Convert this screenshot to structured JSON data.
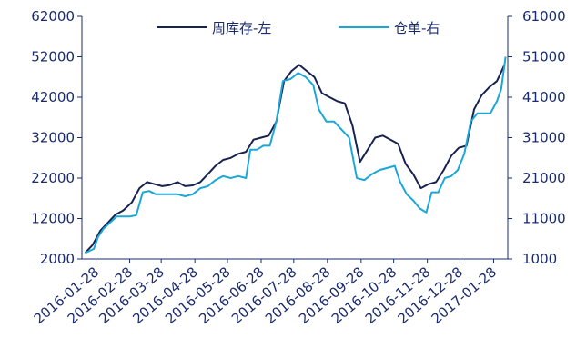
{
  "chart_data": {
    "type": "line",
    "title": "",
    "xlabel": "",
    "y_left": {
      "label": "",
      "ylim": [
        2000,
        62000
      ],
      "ticks": [
        2000,
        12000,
        22000,
        32000,
        42000,
        52000,
        62000
      ]
    },
    "y_right": {
      "label": "",
      "ylim": [
        1000,
        61000
      ],
      "ticks": [
        1000,
        11000,
        21000,
        31000,
        41000,
        51000,
        61000
      ]
    },
    "x_tick_labels": [
      "2016-01-28",
      "2016-02-28",
      "2016-03-28",
      "2016-04-28",
      "2016-05-28",
      "2016-06-28",
      "2016-07-28",
      "2016-08-28",
      "2016-09-28",
      "2016-10-28",
      "2016-11-28",
      "2016-12-28",
      "2017-01-28"
    ],
    "grid": false,
    "legend_position": "top",
    "series": [
      {
        "name": "周库存-左",
        "axis": "left",
        "color": "#17224f",
        "points": [
          [
            "2016-01-18",
            3500
          ],
          [
            "2016-01-25",
            5500
          ],
          [
            "2016-02-01",
            9000
          ],
          [
            "2016-02-08",
            11000
          ],
          [
            "2016-02-15",
            13000
          ],
          [
            "2016-02-22",
            14000
          ],
          [
            "2016-03-01",
            16000
          ],
          [
            "2016-03-08",
            19500
          ],
          [
            "2016-03-15",
            21000
          ],
          [
            "2016-03-22",
            20500
          ],
          [
            "2016-03-29",
            20000
          ],
          [
            "2016-04-05",
            20300
          ],
          [
            "2016-04-12",
            21000
          ],
          [
            "2016-04-19",
            20000
          ],
          [
            "2016-04-26",
            20200
          ],
          [
            "2016-05-03",
            21000
          ],
          [
            "2016-05-10",
            23000
          ],
          [
            "2016-05-17",
            25000
          ],
          [
            "2016-05-24",
            26500
          ],
          [
            "2016-05-31",
            27000
          ],
          [
            "2016-06-07",
            28000
          ],
          [
            "2016-06-14",
            28500
          ],
          [
            "2016-06-21",
            31500
          ],
          [
            "2016-06-28",
            32000
          ],
          [
            "2016-07-05",
            32500
          ],
          [
            "2016-07-12",
            36000
          ],
          [
            "2016-07-19",
            46000
          ],
          [
            "2016-07-26",
            48500
          ],
          [
            "2016-08-02",
            50000
          ],
          [
            "2016-08-09",
            48500
          ],
          [
            "2016-08-16",
            47000
          ],
          [
            "2016-08-23",
            43000
          ],
          [
            "2016-08-30",
            42000
          ],
          [
            "2016-09-06",
            41000
          ],
          [
            "2016-09-13",
            40500
          ],
          [
            "2016-09-20",
            35000
          ],
          [
            "2016-09-27",
            26000
          ],
          [
            "2016-10-04",
            29000
          ],
          [
            "2016-10-11",
            32000
          ],
          [
            "2016-10-18",
            32500
          ],
          [
            "2016-10-25",
            31500
          ],
          [
            "2016-11-01",
            30500
          ],
          [
            "2016-11-08",
            25500
          ],
          [
            "2016-11-15",
            23000
          ],
          [
            "2016-11-22",
            19500
          ],
          [
            "2016-11-29",
            20500
          ],
          [
            "2016-12-06",
            21000
          ],
          [
            "2016-12-13",
            24000
          ],
          [
            "2016-12-20",
            27500
          ],
          [
            "2016-12-27",
            29500
          ],
          [
            "2017-01-03",
            30000
          ],
          [
            "2017-01-10",
            39000
          ],
          [
            "2017-01-17",
            42500
          ],
          [
            "2017-01-24",
            44500
          ],
          [
            "2017-01-31",
            46000
          ],
          [
            "2017-02-07",
            50000
          ]
        ]
      },
      {
        "name": "仓单-右",
        "axis": "right",
        "color": "#1aa7d8",
        "points": [
          [
            "2016-01-18",
            2500
          ],
          [
            "2016-01-22",
            3000
          ],
          [
            "2016-01-26",
            3500
          ],
          [
            "2016-01-30",
            6500
          ],
          [
            "2016-02-04",
            8500
          ],
          [
            "2016-02-10",
            10000
          ],
          [
            "2016-02-16",
            11500
          ],
          [
            "2016-02-22",
            11500
          ],
          [
            "2016-02-28",
            11500
          ],
          [
            "2016-03-05",
            11800
          ],
          [
            "2016-03-11",
            17500
          ],
          [
            "2016-03-17",
            17800
          ],
          [
            "2016-03-23",
            17000
          ],
          [
            "2016-03-29",
            17000
          ],
          [
            "2016-04-05",
            17000
          ],
          [
            "2016-04-12",
            17000
          ],
          [
            "2016-04-19",
            16500
          ],
          [
            "2016-04-26",
            17000
          ],
          [
            "2016-05-03",
            18500
          ],
          [
            "2016-05-10",
            19000
          ],
          [
            "2016-05-17",
            20500
          ],
          [
            "2016-05-24",
            21500
          ],
          [
            "2016-05-31",
            21000
          ],
          [
            "2016-06-07",
            21500
          ],
          [
            "2016-06-14",
            21000
          ],
          [
            "2016-06-18",
            28000
          ],
          [
            "2016-06-24",
            28000
          ],
          [
            "2016-06-30",
            29000
          ],
          [
            "2016-07-06",
            29000
          ],
          [
            "2016-07-12",
            35000
          ],
          [
            "2016-07-18",
            45000
          ],
          [
            "2016-07-25",
            45500
          ],
          [
            "2016-08-01",
            47000
          ],
          [
            "2016-08-08",
            46000
          ],
          [
            "2016-08-15",
            44000
          ],
          [
            "2016-08-20",
            38000
          ],
          [
            "2016-08-27",
            35000
          ],
          [
            "2016-09-03",
            35000
          ],
          [
            "2016-09-10",
            33000
          ],
          [
            "2016-09-17",
            31000
          ],
          [
            "2016-09-24",
            21000
          ],
          [
            "2016-10-01",
            20500
          ],
          [
            "2016-10-08",
            22000
          ],
          [
            "2016-10-15",
            23000
          ],
          [
            "2016-10-22",
            23500
          ],
          [
            "2016-10-29",
            24000
          ],
          [
            "2016-11-03",
            20000
          ],
          [
            "2016-11-09",
            17000
          ],
          [
            "2016-11-15",
            15500
          ],
          [
            "2016-11-21",
            13500
          ],
          [
            "2016-11-27",
            12500
          ],
          [
            "2016-12-02",
            17500
          ],
          [
            "2016-12-08",
            17500
          ],
          [
            "2016-12-14",
            21000
          ],
          [
            "2016-12-20",
            21500
          ],
          [
            "2016-12-26",
            23000
          ],
          [
            "2017-01-01",
            27000
          ],
          [
            "2017-01-07",
            35000
          ],
          [
            "2017-01-13",
            37000
          ],
          [
            "2017-01-19",
            37000
          ],
          [
            "2017-01-25",
            37000
          ],
          [
            "2017-01-31",
            40000
          ],
          [
            "2017-02-04",
            43000
          ],
          [
            "2017-02-08",
            51000
          ]
        ]
      }
    ]
  }
}
